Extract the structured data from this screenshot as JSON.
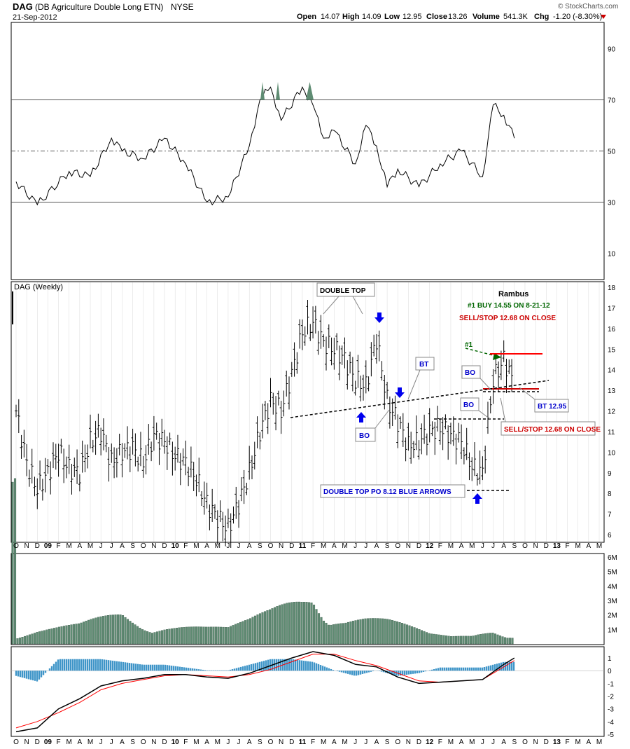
{
  "header": {
    "symbol": "DAG",
    "name": "(DB Agriculture Double Long ETN)",
    "exchange": "NYSE",
    "date": "21-Sep-2012",
    "watermark": "© StockCharts.com",
    "quote": {
      "open_label": "Open",
      "open": "14.07",
      "high_label": "High",
      "high": "14.09",
      "low_label": "Low",
      "low": "12.95",
      "close_label": "Close",
      "close": "13.26",
      "volume_label": "Volume",
      "volume": "541.3K",
      "chg_label": "Chg",
      "chg": "-1.20 (-8.30%)"
    }
  },
  "colors": {
    "volume_bar": "#5f8c73",
    "macd_hist": "#3f95c8",
    "signal_red": "#ff0000",
    "annotation_blue": "#0000cc",
    "annotation_green": "#006600",
    "annotation_red": "#cc0000",
    "rsi_fill": "#5f8c73",
    "grid": "#d9d9d9"
  },
  "x_axis": {
    "labels": [
      "O",
      "N",
      "D",
      "09",
      "F",
      "M",
      "A",
      "M",
      "J",
      "J",
      "A",
      "S",
      "O",
      "N",
      "D",
      "10",
      "F",
      "M",
      "A",
      "M",
      "J",
      "J",
      "A",
      "S",
      "O",
      "N",
      "D",
      "11",
      "F",
      "M",
      "A",
      "M",
      "J",
      "J",
      "A",
      "S",
      "O",
      "N",
      "D",
      "12",
      "F",
      "M",
      "A",
      "M",
      "J",
      "J",
      "A",
      "S",
      "O",
      "N",
      "D",
      "13",
      "F",
      "M",
      "A",
      "M"
    ],
    "year_labels": [
      "09",
      "10",
      "11",
      "12",
      "13"
    ]
  },
  "price_panel": {
    "label": "DAG (Weekly)",
    "y_ticks": [
      "18",
      "17",
      "16",
      "15",
      "14",
      "13",
      "12",
      "11",
      "10",
      "9",
      "8",
      "7",
      "6"
    ]
  },
  "rsi_panel": {
    "y_ticks": [
      "90",
      "70",
      "50",
      "30",
      "10"
    ],
    "levels": [
      70,
      50,
      30
    ]
  },
  "volume_panel": {
    "y_ticks": [
      "6M",
      "5M",
      "4M",
      "3M",
      "2M",
      "1M"
    ]
  },
  "macd_panel": {
    "y_ticks": [
      "1",
      "0",
      "-1",
      "-2",
      "-3",
      "-4",
      "-5"
    ]
  },
  "annotations": {
    "double_top": "DOUBLE TOP",
    "rambus": "Rambus",
    "buy_line": "#1  BUY 14.55 ON 8-21-12",
    "sell_line": "SELL/STOP 12.68 ON CLOSE",
    "marker_1": "#1",
    "bt": "BT",
    "bo": "BO",
    "bt_1295": "BT 12.95",
    "sell_stop_box": "SELL/STOP 12.68 ON CLOSE",
    "double_top_po": "DOUBLE TOP PO 8.12 BLUE ARROWS"
  },
  "chart_data": [
    {
      "type": "line",
      "panel": "RSI",
      "ylim": [
        0,
        100
      ],
      "x": [
        "Oct-08",
        "Dec-08",
        "Mar-09",
        "May-09",
        "Jul-09",
        "Aug-09",
        "Oct-09",
        "Dec-09",
        "Feb-10",
        "Apr-10",
        "Jun-10",
        "Aug-10",
        "Sep-10",
        "Oct-10",
        "Nov-10",
        "Jan-11",
        "Feb-11",
        "Mar-11",
        "Apr-11",
        "Jun-11",
        "Jul-11",
        "Aug-11",
        "Sep-11",
        "Oct-11",
        "Dec-11",
        "Feb-12",
        "Apr-12",
        "Jun-12",
        "Jul-12",
        "Aug-12",
        "Sep-12"
      ],
      "values": [
        38,
        29,
        42,
        40,
        55,
        50,
        47,
        55,
        45,
        30,
        32,
        52,
        70,
        75,
        62,
        75,
        68,
        55,
        58,
        45,
        60,
        52,
        36,
        43,
        36,
        45,
        50,
        40,
        68,
        64,
        55
      ],
      "levels": [
        70,
        50,
        30
      ]
    },
    {
      "type": "ohlc",
      "panel": "price",
      "title": "DAG (Weekly)",
      "ylim": [
        5.8,
        18.2
      ],
      "x": [
        "Oct-08",
        "Nov-08",
        "Dec-08",
        "Jan-09",
        "Feb-09",
        "Mar-09",
        "Apr-09",
        "May-09",
        "Jun-09",
        "Jul-09",
        "Aug-09",
        "Sep-09",
        "Oct-09",
        "Nov-09",
        "Dec-09",
        "Jan-10",
        "Feb-10",
        "Mar-10",
        "Apr-10",
        "May-10",
        "Jun-10",
        "Jul-10",
        "Aug-10",
        "Sep-10",
        "Oct-10",
        "Nov-10",
        "Dec-10",
        "Jan-11",
        "Feb-11",
        "Mar-11",
        "Apr-11",
        "May-11",
        "Jun-11",
        "Jul-11",
        "Aug-11",
        "Sep-11",
        "Oct-11",
        "Nov-11",
        "Dec-11",
        "Jan-12",
        "Feb-12",
        "Mar-12",
        "Apr-12",
        "May-12",
        "Jun-12",
        "Jul-12",
        "Aug-12",
        "Sep-12"
      ],
      "close": [
        12.0,
        9.5,
        8.2,
        9.0,
        10.0,
        9.2,
        9.0,
        10.5,
        11.0,
        9.5,
        10.0,
        10.2,
        9.5,
        10.8,
        10.5,
        9.8,
        9.5,
        8.7,
        7.5,
        6.8,
        6.3,
        7.5,
        9.0,
        11.0,
        12.5,
        12.0,
        13.8,
        15.8,
        16.3,
        15.3,
        15.0,
        14.5,
        13.5,
        13.2,
        15.5,
        12.5,
        11.5,
        10.3,
        10.5,
        11.0,
        11.2,
        10.8,
        10.5,
        9.3,
        9.0,
        13.5,
        14.5,
        13.26
      ],
      "annotation_lines": {
        "double_top_target": 8.12,
        "buy": 14.55,
        "sell_stop": 12.68,
        "bt": 12.95,
        "resistance_top": 14.8,
        "support_mid": 13.0,
        "breakout_level": 11.55
      }
    },
    {
      "type": "bar",
      "panel": "volume",
      "ylim": [
        0,
        6000000
      ],
      "x": [
        "Oct-08",
        "Dec-08",
        "Feb-09",
        "Apr-09",
        "Jun-09",
        "Aug-09",
        "Oct-09",
        "Dec-09",
        "Feb-10",
        "Apr-10",
        "Jun-10",
        "Aug-10",
        "Oct-10",
        "Dec-10",
        "Jan-11",
        "Feb-11",
        "Mar-11",
        "May-11",
        "Jul-11",
        "Sep-11",
        "Nov-11",
        "Jan-12",
        "Mar-12",
        "May-12",
        "Jul-12",
        "Sep-12"
      ],
      "values": [
        300000,
        600000,
        800000,
        1000000,
        1500000,
        2000000,
        1400000,
        1300000,
        1100000,
        900000,
        800000,
        1200000,
        1800000,
        2600000,
        3000000,
        3500000,
        2500000,
        1800000,
        1600000,
        1300000,
        900000,
        500000,
        400000,
        500000,
        1000000,
        600000
      ]
    },
    {
      "type": "line",
      "panel": "MACD",
      "ylim": [
        -5,
        1.5
      ],
      "x": [
        "Oct-08",
        "Dec-08",
        "Feb-09",
        "Apr-09",
        "Jun-09",
        "Aug-09",
        "Oct-09",
        "Dec-09",
        "Feb-10",
        "Apr-10",
        "Jun-10",
        "Aug-10",
        "Oct-10",
        "Dec-10",
        "Feb-11",
        "Apr-11",
        "Jun-11",
        "Aug-11",
        "Oct-11",
        "Dec-11",
        "Feb-12",
        "Apr-12",
        "Jun-12",
        "Aug-12",
        "Sep-12"
      ],
      "series": [
        {
          "values": [
            -4.8,
            -4.5,
            -3.0,
            -2.2,
            -1.2,
            -0.8,
            -0.6,
            -0.3,
            -0.3,
            -0.5,
            -0.6,
            -0.2,
            0.4,
            1.0,
            1.5,
            1.2,
            0.5,
            0.3,
            -0.5,
            -1.0,
            -0.9,
            -0.8,
            -0.7,
            0.5,
            1.0
          ]
        },
        {
          "values": [
            -4.5,
            -4.0,
            -3.3,
            -2.5,
            -1.5,
            -1.0,
            -0.7,
            -0.4,
            -0.3,
            -0.4,
            -0.5,
            -0.3,
            0.1,
            0.7,
            1.3,
            1.3,
            0.8,
            0.4,
            -0.2,
            -0.8,
            -0.9,
            -0.8,
            -0.7,
            0.3,
            0.8
          ]
        }
      ]
    }
  ]
}
